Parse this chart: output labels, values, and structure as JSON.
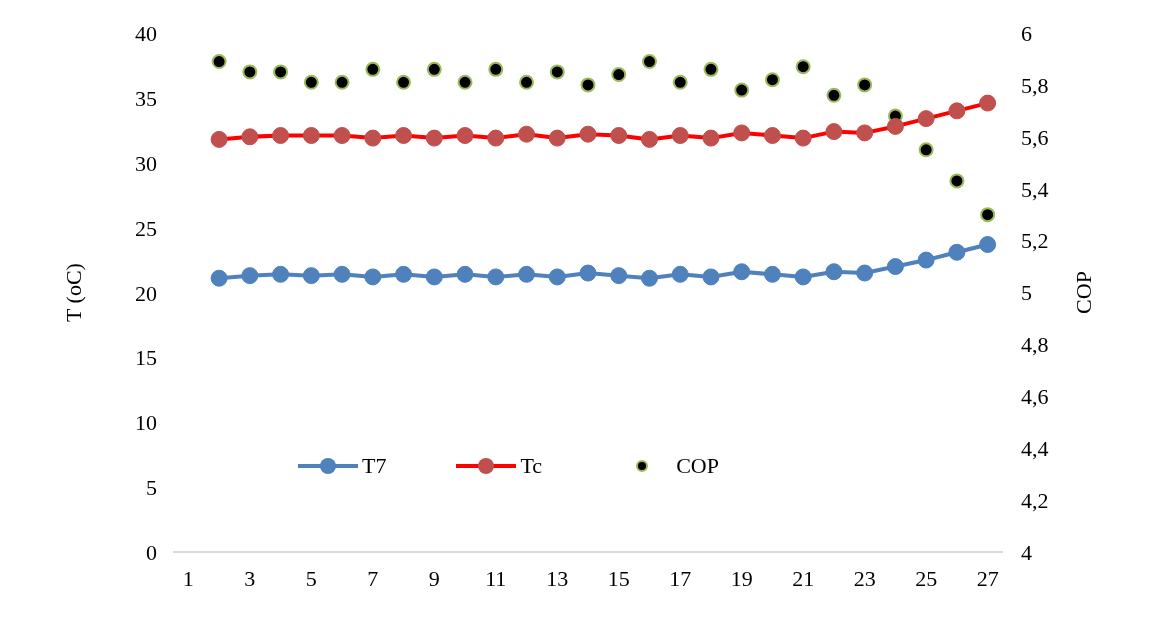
{
  "chart_data": {
    "type": "line",
    "xlabel": null,
    "ylabel": "T (oC)",
    "y2label": "COP",
    "x": [
      2,
      3,
      4,
      5,
      6,
      7,
      8,
      9,
      10,
      11,
      12,
      13,
      14,
      15,
      16,
      17,
      18,
      19,
      20,
      21,
      22,
      23,
      24,
      25,
      26,
      27
    ],
    "xlim": [
      0.5,
      27.5
    ],
    "xticks": [
      1,
      3,
      5,
      7,
      9,
      11,
      13,
      15,
      17,
      19,
      21,
      23,
      25,
      27
    ],
    "ylim": [
      0,
      40
    ],
    "yticks": [
      0,
      5,
      10,
      15,
      20,
      25,
      30,
      35,
      40
    ],
    "y2lim": [
      4,
      6
    ],
    "y2ticks": [
      {
        "value": 4,
        "label": "4"
      },
      {
        "value": 4.2,
        "label": "4,2"
      },
      {
        "value": 4.4,
        "label": "4,4"
      },
      {
        "value": 4.6,
        "label": "4,6"
      },
      {
        "value": 4.8,
        "label": "4,8"
      },
      {
        "value": 5,
        "label": "5"
      },
      {
        "value": 5.2,
        "label": "5,2"
      },
      {
        "value": 5.4,
        "label": "5,4"
      },
      {
        "value": 5.6,
        "label": "5,6"
      },
      {
        "value": 5.8,
        "label": "5,8"
      },
      {
        "value": 6,
        "label": "6"
      }
    ],
    "series": [
      {
        "name": "T7",
        "type": "line",
        "color": "#4f81bd",
        "values": [
          21.1,
          21.3,
          21.4,
          21.3,
          21.4,
          21.2,
          21.4,
          21.2,
          21.4,
          21.2,
          21.4,
          21.2,
          21.5,
          21.3,
          21.1,
          21.4,
          21.2,
          21.6,
          21.4,
          21.2,
          21.6,
          21.5,
          22.0,
          22.5,
          23.1,
          23.7
        ]
      },
      {
        "name": "Tc",
        "type": "line",
        "color": "#ff0000",
        "colors": [
          "#c0504d",
          "#c0504d",
          "#c0504d",
          "#c0504d",
          "#c0504d",
          "#c0504d",
          "#c0504d",
          "#c0504d",
          "#c0504d",
          "#c0504d",
          "#c0504d",
          "#c0504d",
          "#c0504d",
          "#c0504d",
          "#c0504d",
          "#c0504d",
          "#c0504d",
          "#c0504d",
          "#c0504d",
          "#c0504d",
          "#c0504d",
          "#c0504d",
          "#c0504d",
          "#c0504d",
          "#c0504d",
          "#c0504d"
        ],
        "values": [
          31.8,
          32.0,
          32.1,
          32.1,
          32.1,
          31.9,
          32.1,
          31.9,
          32.1,
          31.9,
          32.2,
          31.9,
          32.2,
          32.1,
          31.8,
          32.1,
          31.9,
          32.3,
          32.1,
          31.9,
          32.4,
          32.3,
          32.8,
          33.4,
          34.0,
          34.6
        ]
      },
      {
        "name": "COP",
        "type": "scatter",
        "axis": "y2",
        "color": "#000000",
        "values": [
          5.89,
          5.85,
          5.85,
          5.81,
          5.81,
          5.86,
          5.81,
          5.86,
          5.81,
          5.86,
          5.81,
          5.85,
          5.8,
          5.84,
          5.89,
          5.81,
          5.86,
          5.78,
          5.82,
          5.87,
          5.76,
          5.8,
          5.68,
          5.55,
          5.43,
          5.3
        ]
      }
    ],
    "marker": "circle",
    "grid": false,
    "legend": "bottom"
  }
}
